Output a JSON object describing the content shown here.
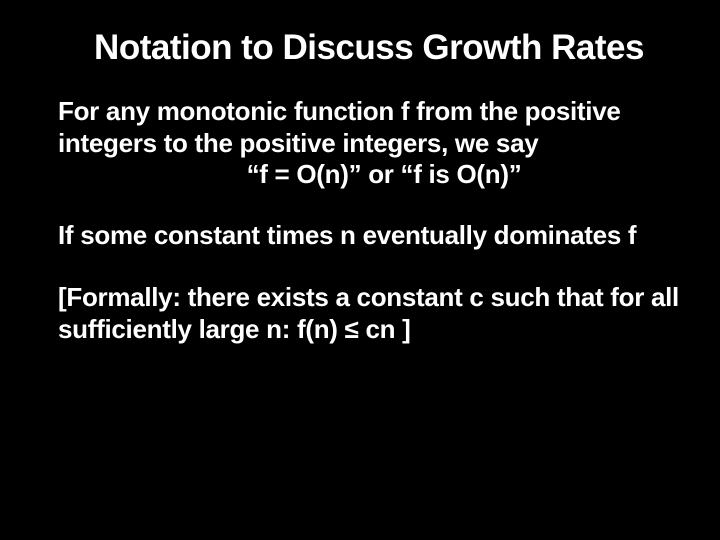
{
  "slide": {
    "title": "Notation to Discuss Growth Rates",
    "para1": "For any monotonic function f from the positive integers to the positive integers, we say",
    "centerLine": "“f = O(n)” or “f is O(n)”",
    "para2": "If some constant times n eventually dominates f",
    "para3": "[Formally: there exists a constant c such that for all sufficiently large n:  f(n) ≤ cn ]"
  },
  "style": {
    "background_color": "#000000",
    "text_color": "#ffffff",
    "title_fontsize": 35,
    "body_fontsize": 26,
    "font_weight": 900,
    "font_family": "Arial"
  }
}
